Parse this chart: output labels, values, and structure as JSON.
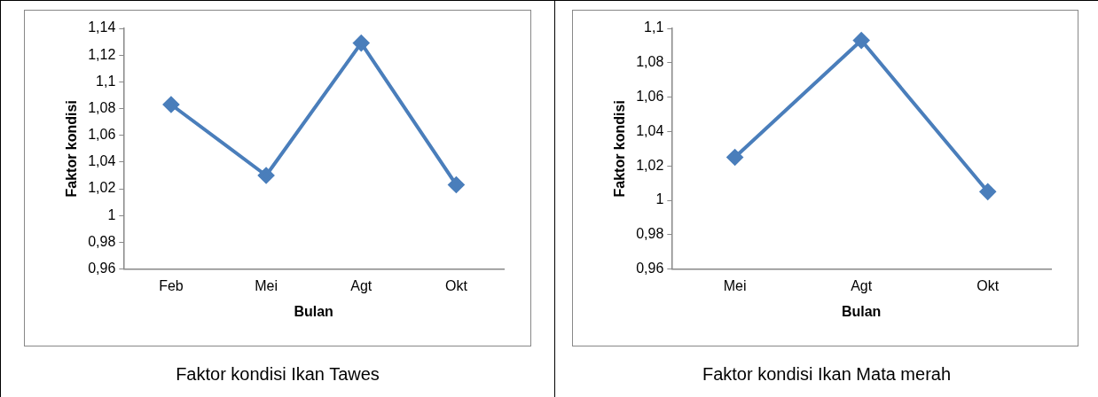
{
  "chart_data": [
    {
      "type": "line",
      "title": "Faktor kondisi Ikan Tawes",
      "xlabel": "Bulan",
      "ylabel": "Faktor kondisi",
      "categories": [
        "Feb",
        "Mei",
        "Agt",
        "Okt"
      ],
      "series": [
        {
          "color": "#4a7ebb",
          "values": [
            1.083,
            1.03,
            1.129,
            1.023
          ]
        }
      ],
      "ylim": [
        0.96,
        1.14
      ],
      "yticks": [
        {
          "value": 0.96,
          "label": "0,96"
        },
        {
          "value": 0.98,
          "label": "0,98"
        },
        {
          "value": 1,
          "label": "1"
        },
        {
          "value": 1.02,
          "label": "1,02"
        },
        {
          "value": 1.04,
          "label": "1,04"
        },
        {
          "value": 1.06,
          "label": "1,06"
        },
        {
          "value": 1.08,
          "label": "1,08"
        },
        {
          "value": 1.1,
          "label": "1,1"
        },
        {
          "value": 1.12,
          "label": "1,12"
        },
        {
          "value": 1.14,
          "label": "1,14"
        }
      ],
      "grid": false,
      "legend": false,
      "marker": "diamond",
      "line_style": "solid"
    },
    {
      "type": "line",
      "title": "Faktor kondisi Ikan Mata merah",
      "xlabel": "Bulan",
      "ylabel": "Faktor kondisi",
      "categories": [
        "Mei",
        "Agt",
        "Okt"
      ],
      "series": [
        {
          "color": "#4a7ebb",
          "values": [
            1.025,
            1.093,
            1.005
          ]
        }
      ],
      "ylim": [
        0.96,
        1.1
      ],
      "yticks": [
        {
          "value": 0.96,
          "label": "0,96"
        },
        {
          "value": 0.98,
          "label": "0,98"
        },
        {
          "value": 1,
          "label": "1"
        },
        {
          "value": 1.02,
          "label": "1,02"
        },
        {
          "value": 1.04,
          "label": "1,04"
        },
        {
          "value": 1.06,
          "label": "1,06"
        },
        {
          "value": 1.08,
          "label": "1,08"
        },
        {
          "value": 1.1,
          "label": "1,1"
        }
      ],
      "grid": false,
      "legend": false,
      "marker": "diamond",
      "line_style": "solid"
    }
  ]
}
